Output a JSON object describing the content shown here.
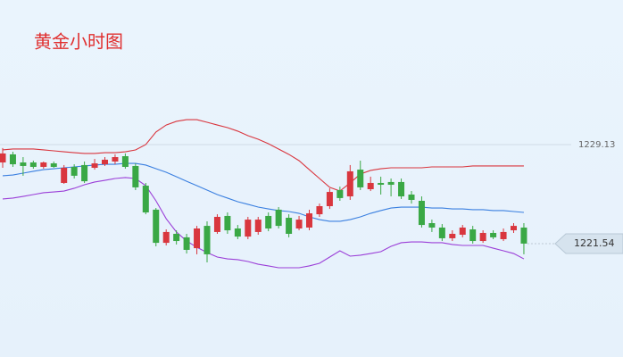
{
  "chart_data": {
    "type": "candlestick",
    "title": "黄金小时图",
    "ylim": [
      1212.85,
      1240.21
    ],
    "yticks": [
      1229.13
    ],
    "last_price": 1221.54,
    "up_color": "#d9363e",
    "down_color": "#3aa845",
    "series": {
      "open": [
        1227.76,
        1228.38,
        1227.76,
        1227.76,
        1227.42,
        1227.69,
        1226.19,
        1227.42,
        1227.56,
        1227.35,
        1227.62,
        1227.83,
        1228.24,
        1227.49,
        1225.98,
        1224.14,
        1221.6,
        1222.29,
        1222.02,
        1221.19,
        1222.9,
        1222.43,
        1223.66,
        1222.7,
        1222.08,
        1222.43,
        1223.66,
        1224.14,
        1223.52,
        1222.7,
        1222.77,
        1223.79,
        1224.41,
        1225.64,
        1225.16,
        1227.21,
        1225.71,
        1226.19,
        1226.26,
        1226.26,
        1225.3,
        1224.82,
        1223.11,
        1222.77,
        1221.95,
        1222.22,
        1222.63,
        1221.74,
        1222.36,
        1221.88,
        1222.56,
        1222.77
      ],
      "high": [
        1228.86,
        1228.58,
        1228.17,
        1227.9,
        1227.83,
        1227.83,
        1227.56,
        1227.62,
        1227.83,
        1228.03,
        1228.17,
        1228.38,
        1228.45,
        1227.69,
        1226.19,
        1224.27,
        1222.63,
        1222.56,
        1222.29,
        1222.9,
        1223.25,
        1223.79,
        1223.93,
        1222.97,
        1223.59,
        1223.59,
        1223.93,
        1224.34,
        1223.79,
        1223.66,
        1224.14,
        1224.61,
        1225.78,
        1225.91,
        1227.56,
        1227.9,
        1226.67,
        1226.67,
        1226.53,
        1226.53,
        1225.57,
        1225.16,
        1223.38,
        1223.04,
        1222.56,
        1222.97,
        1222.9,
        1222.56,
        1222.56,
        1222.7,
        1223.11,
        1223.11
      ],
      "low": [
        1227.35,
        1227.42,
        1226.74,
        1227.28,
        1227.28,
        1227.35,
        1226.12,
        1226.53,
        1226.19,
        1227.21,
        1227.49,
        1227.62,
        1227.28,
        1225.64,
        1223.79,
        1221.33,
        1221.4,
        1221.47,
        1220.78,
        1220.72,
        1220.1,
        1222.29,
        1222.29,
        1221.88,
        1221.88,
        1222.22,
        1222.49,
        1222.7,
        1222.02,
        1222.56,
        1222.56,
        1223.59,
        1224.2,
        1224.82,
        1224.89,
        1225.64,
        1225.57,
        1225.3,
        1225.16,
        1224.96,
        1224.61,
        1222.77,
        1222.43,
        1221.74,
        1221.74,
        1222.02,
        1221.54,
        1221.6,
        1221.88,
        1221.74,
        1222.36,
        1220.72
      ],
      "close": [
        1228.45,
        1227.62,
        1227.49,
        1227.42,
        1227.76,
        1227.42,
        1227.35,
        1226.74,
        1226.32,
        1227.69,
        1227.97,
        1228.17,
        1227.42,
        1225.85,
        1223.93,
        1221.6,
        1222.43,
        1221.74,
        1221.06,
        1222.7,
        1220.72,
        1223.59,
        1222.56,
        1222.08,
        1223.38,
        1223.38,
        1222.7,
        1222.9,
        1222.29,
        1223.38,
        1223.86,
        1224.41,
        1225.5,
        1225.03,
        1227.08,
        1225.85,
        1226.19,
        1226.05,
        1226.05,
        1225.16,
        1224.89,
        1222.97,
        1222.77,
        1221.95,
        1222.29,
        1222.77,
        1221.74,
        1222.36,
        1222.02,
        1222.43,
        1222.9,
        1221.54
      ]
    },
    "lines": [
      {
        "color": "#d9363e",
        "values": [
          1228.72,
          1228.79,
          1228.79,
          1228.79,
          1228.72,
          1228.65,
          1228.58,
          1228.51,
          1228.45,
          1228.45,
          1228.51,
          1228.51,
          1228.58,
          1228.72,
          1229.13,
          1230.09,
          1230.63,
          1230.91,
          1231.04,
          1231.04,
          1230.84,
          1230.63,
          1230.43,
          1230.16,
          1229.81,
          1229.54,
          1229.2,
          1228.79,
          1228.38,
          1227.9,
          1227.21,
          1226.53,
          1225.85,
          1225.57,
          1226.19,
          1226.87,
          1227.15,
          1227.28,
          1227.35,
          1227.35,
          1227.35,
          1227.35,
          1227.42,
          1227.42,
          1227.42,
          1227.42,
          1227.49,
          1227.49,
          1227.49,
          1227.49,
          1227.49,
          1227.49
        ]
      },
      {
        "color": "#3a7fe0",
        "values": [
          1226.74,
          1226.8,
          1226.94,
          1227.08,
          1227.21,
          1227.28,
          1227.35,
          1227.42,
          1227.49,
          1227.56,
          1227.62,
          1227.62,
          1227.69,
          1227.69,
          1227.56,
          1227.28,
          1227.01,
          1226.67,
          1226.32,
          1225.98,
          1225.64,
          1225.3,
          1225.03,
          1224.75,
          1224.55,
          1224.34,
          1224.2,
          1224.07,
          1224.0,
          1223.86,
          1223.59,
          1223.38,
          1223.25,
          1223.25,
          1223.38,
          1223.59,
          1223.86,
          1224.07,
          1224.27,
          1224.34,
          1224.34,
          1224.34,
          1224.27,
          1224.27,
          1224.2,
          1224.2,
          1224.14,
          1224.14,
          1224.07,
          1224.07,
          1224.0,
          1223.93
        ]
      },
      {
        "color": "#9b3fd8",
        "values": [
          1224.96,
          1225.03,
          1225.16,
          1225.3,
          1225.44,
          1225.5,
          1225.57,
          1225.78,
          1226.05,
          1226.26,
          1226.39,
          1226.53,
          1226.6,
          1226.53,
          1225.98,
          1224.82,
          1223.45,
          1222.43,
          1221.74,
          1221.26,
          1220.85,
          1220.51,
          1220.37,
          1220.31,
          1220.17,
          1219.96,
          1219.83,
          1219.69,
          1219.69,
          1219.69,
          1219.83,
          1220.03,
          1220.51,
          1220.99,
          1220.58,
          1220.65,
          1220.78,
          1220.92,
          1221.33,
          1221.61,
          1221.67,
          1221.67,
          1221.61,
          1221.61,
          1221.47,
          1221.4,
          1221.4,
          1221.4,
          1221.19,
          1220.99,
          1220.78,
          1220.37
        ]
      }
    ]
  }
}
